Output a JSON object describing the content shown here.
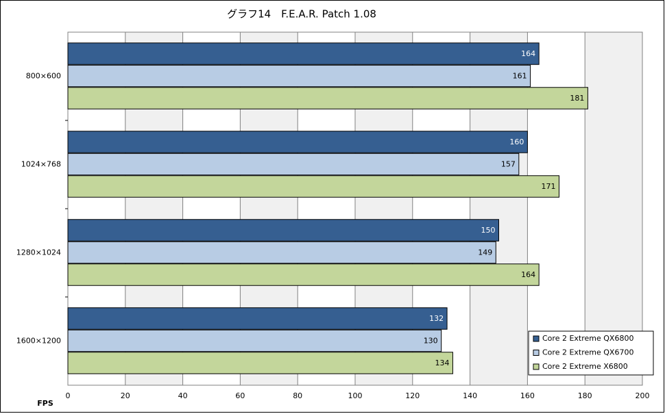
{
  "chart_data": {
    "type": "hbar",
    "title": "グラフ14　F.E.A.R. Patch 1.08",
    "x_label": "FPS",
    "categories": [
      "800×600",
      "1024×768",
      "1280×1024",
      "1600×1200"
    ],
    "series": [
      {
        "name": "Core 2 Extreme QX6800",
        "color": "#365f91",
        "values": [
          164,
          160,
          150,
          132
        ]
      },
      {
        "name": "Core 2 Extreme QX6700",
        "color": "#b8cce4",
        "values": [
          161,
          157,
          149,
          130
        ]
      },
      {
        "name": "Core 2 Extreme X6800",
        "color": "#c3d69b",
        "values": [
          181,
          171,
          164,
          134
        ]
      }
    ],
    "xlim": [
      0,
      200
    ],
    "xticks": [
      0,
      20,
      40,
      60,
      80,
      100,
      120,
      140,
      160,
      180,
      200
    ],
    "grid": true,
    "legend": "bottom-right"
  }
}
